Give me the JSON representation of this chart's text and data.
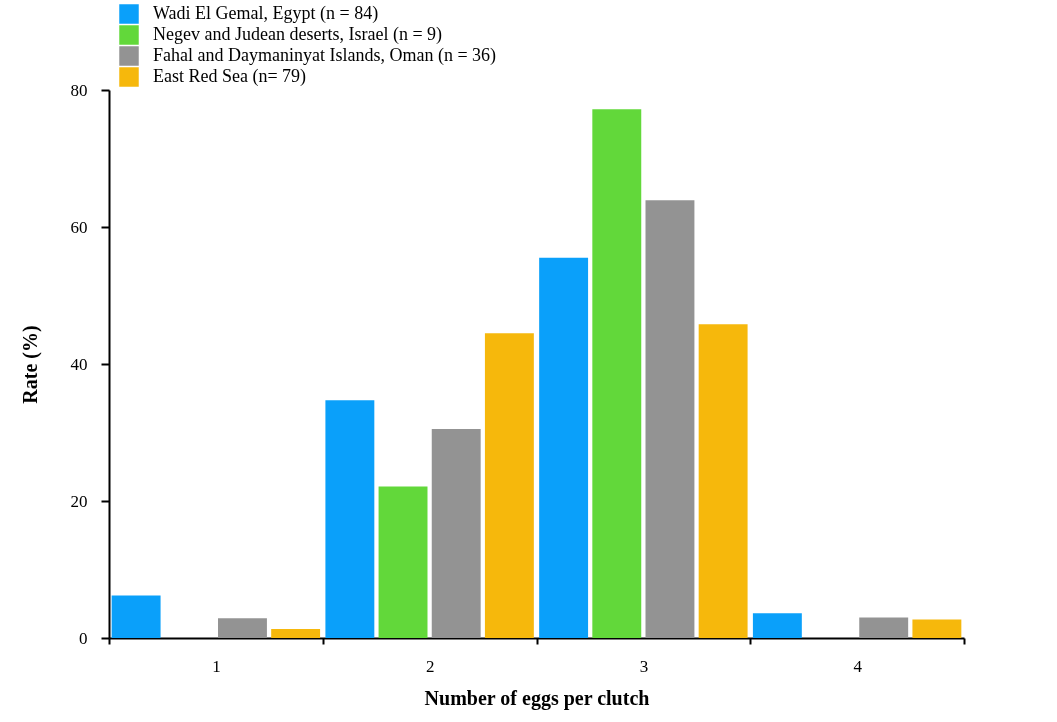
{
  "chart_data": {
    "type": "bar",
    "xlabel": "Number of eggs per clutch",
    "ylabel": "Rate (%)",
    "categories": [
      "1",
      "2",
      "3",
      "4"
    ],
    "series": [
      {
        "name": "Wadi El Gemal,  Egypt (n = 84)",
        "color": "#0aa0fa",
        "values": [
          6.2,
          34.7,
          55.5,
          3.6
        ]
      },
      {
        "name": "Negev and Judean deserts, Israel (n = 9)",
        "color": "#62d83a",
        "values": [
          0,
          22.1,
          77.2,
          0
        ]
      },
      {
        "name": "Fahal and Daymaninyat Islands, Oman (n = 36)",
        "color": "#939393",
        "values": [
          2.9,
          30.5,
          63.9,
          3.0
        ]
      },
      {
        "name": "East Red Sea (n= 79)",
        "color": "#f6b80c",
        "values": [
          1.3,
          44.5,
          45.8,
          2.7
        ]
      }
    ],
    "ylim": [
      0,
      80
    ],
    "yticks": [
      0,
      20,
      40,
      60,
      80
    ],
    "grid": false,
    "legend": "top left"
  }
}
